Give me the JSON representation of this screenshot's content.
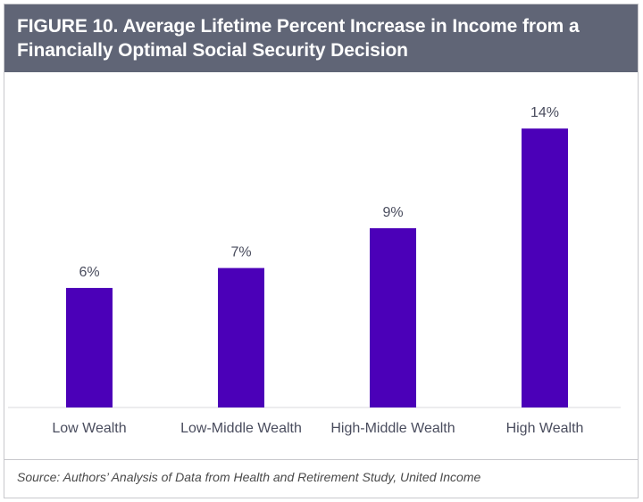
{
  "header": {
    "title_line1": "FIGURE 10. Average Lifetime Percent Increase in Income from a",
    "title_line2": "Financially Optimal Social Security Decision"
  },
  "chart_data": {
    "type": "bar",
    "categories": [
      "Low Wealth",
      "Low-Middle Wealth",
      "High-Middle Wealth",
      "High Wealth"
    ],
    "values": [
      6,
      7,
      9,
      14
    ],
    "value_labels": [
      "6%",
      "7%",
      "9%",
      "14%"
    ],
    "ylim": [
      0,
      14.5
    ],
    "grid": false,
    "bar_color": "#4b00b8"
  },
  "footer": {
    "source": "Source: Authors’ Analysis of Data from Health and Retirement Study, United Income"
  }
}
